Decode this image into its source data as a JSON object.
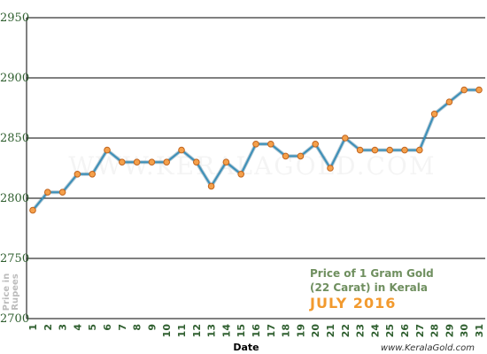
{
  "chart_data": {
    "type": "line",
    "xlabel": "Date",
    "ylabel": "Price in Rupees",
    "ylim": [
      2700,
      2950
    ],
    "yticks": [
      2700,
      2750,
      2800,
      2850,
      2900,
      2950
    ],
    "grid": true,
    "categories": [
      "1",
      "2",
      "3",
      "4",
      "5",
      "6",
      "7",
      "8",
      "9",
      "10",
      "11",
      "12",
      "13",
      "14",
      "15",
      "16",
      "17",
      "18",
      "19",
      "20",
      "21",
      "22",
      "23",
      "24",
      "25",
      "26",
      "27",
      "28",
      "29",
      "30",
      "31"
    ],
    "series": [
      {
        "values": [
          2790,
          2805,
          2805,
          2820,
          2820,
          2840,
          2830,
          2830,
          2830,
          2830,
          2840,
          2830,
          2810,
          2830,
          2820,
          2845,
          2845,
          2835,
          2835,
          2845,
          2825,
          2850,
          2840,
          2840,
          2840,
          2840,
          2840,
          2870,
          2880,
          2890,
          2890
        ]
      }
    ],
    "colors": {
      "line": "#3b8fb8",
      "marker_fill": "#f5a04a",
      "marker_stroke": "#c0641e",
      "grid": "#000000"
    }
  },
  "annotation": {
    "line1": "Price of 1 Gram Gold",
    "line2": "(22 Carat) in Kerala",
    "month": "JULY 2016"
  },
  "watermark": "WWW.KERALAGOLD.COM",
  "footer": "www.KeralaGold.com"
}
